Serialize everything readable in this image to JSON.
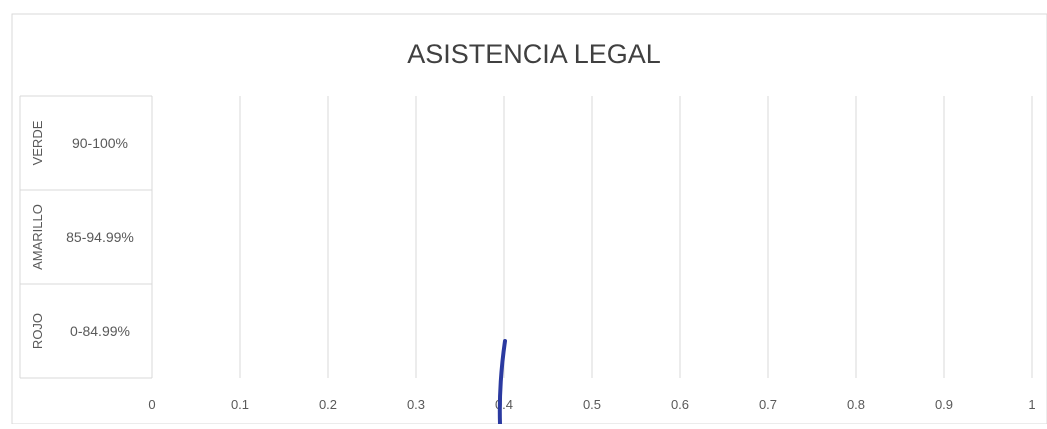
{
  "chart_data": {
    "type": "bar",
    "orientation": "horizontal",
    "title": "ASISTENCIA LEGAL",
    "xlim": [
      0,
      1
    ],
    "x_ticks": [
      "0",
      "0.1",
      "0.2",
      "0.3",
      "0.4",
      "0.5",
      "0.6",
      "0.7",
      "0.8",
      "0.9",
      "1"
    ],
    "grid": "vertical",
    "categories": [
      {
        "name": "VERDE",
        "range": "90-100%"
      },
      {
        "name": "AMARILLO",
        "range": "85-94.99%"
      },
      {
        "name": "ROJO",
        "range": "0-84.99%"
      }
    ],
    "series": [],
    "annotation": {
      "type": "hand-drawn-stroke",
      "x": 0.4,
      "color": "#2b3aa0"
    }
  }
}
